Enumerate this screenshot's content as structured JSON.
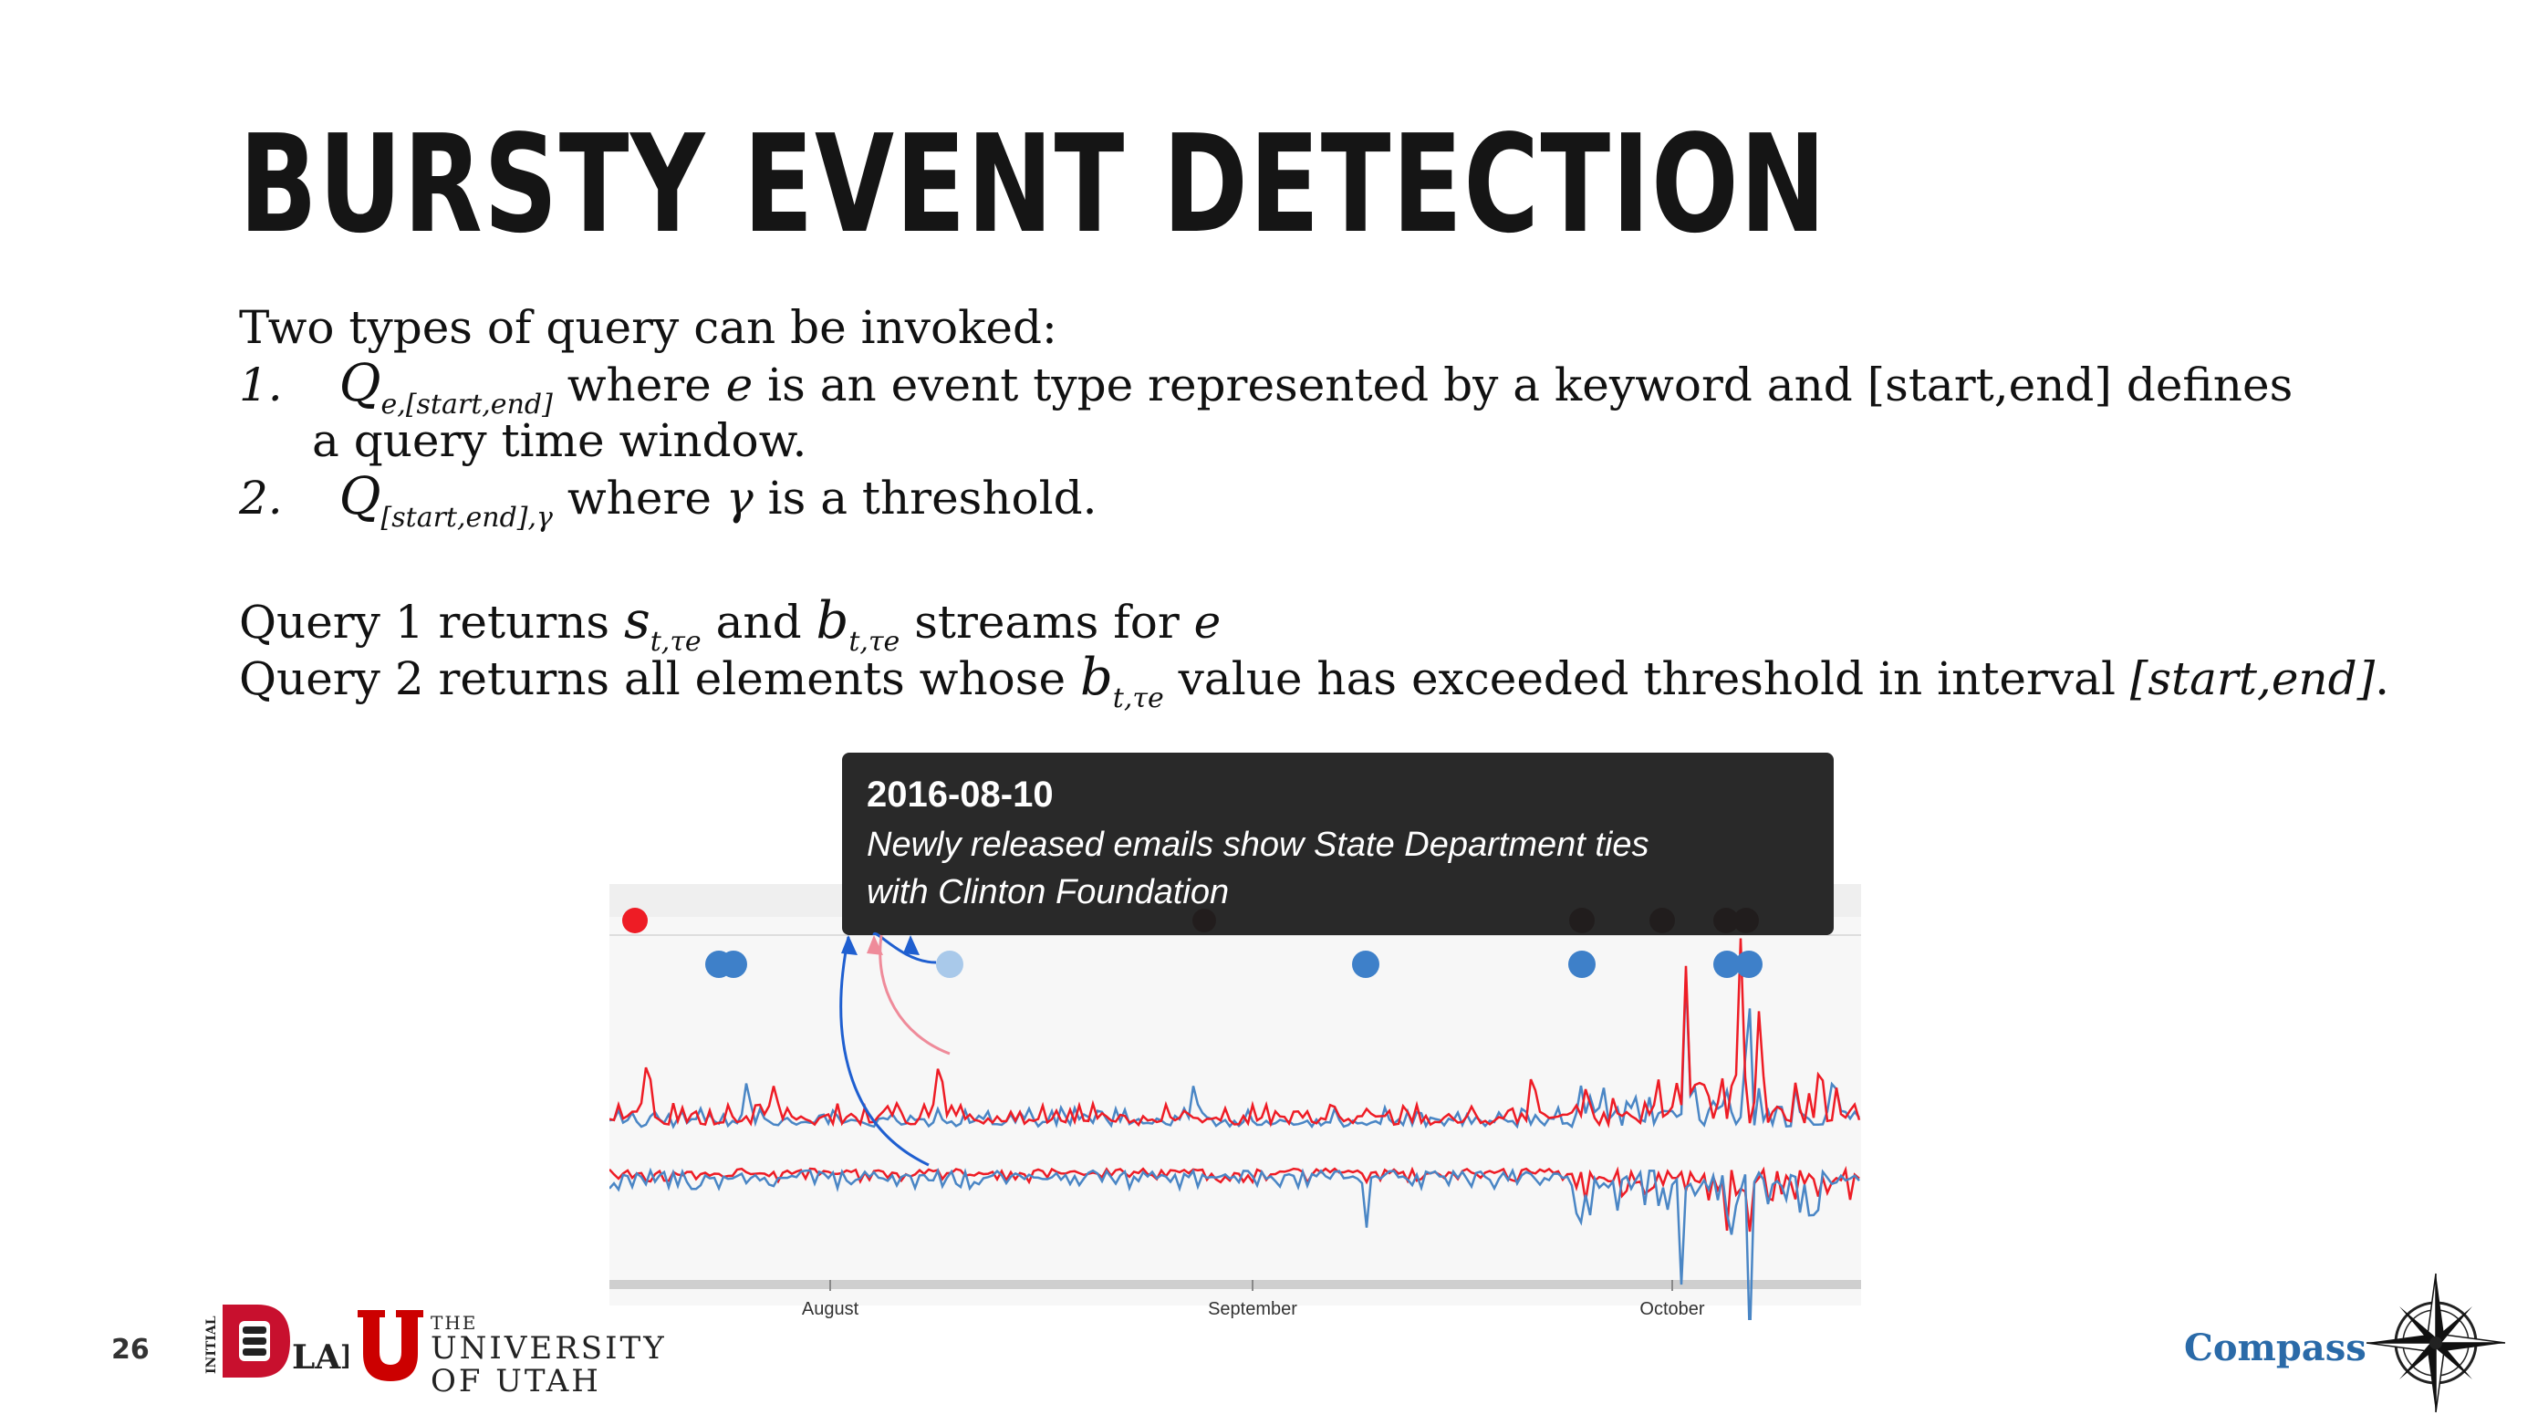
{
  "title": "BURSTY EVENT DETECTION",
  "intro": "Two types of query can be invoked:",
  "item1": {
    "num": "1.",
    "q": "Q",
    "q_sub": "e,[start,end]",
    "t1": " where ",
    "e": "e",
    "t2": " is an event type represented by a keyword and  [start,end] defines",
    "line2": "a query time window."
  },
  "item2": {
    "num": "2.",
    "q": "Q",
    "q_sub": "[start,end],γ",
    "t1": " where ",
    "gamma": "γ",
    "t2": " is a threshold."
  },
  "query1": {
    "t1": "Query 1 returns ",
    "s": "s",
    "s_sub": "t,τe",
    "t2": " and ",
    "b": "b",
    "b_sub": "t,τe",
    "t3": " streams for ",
    "e": "e"
  },
  "query2": {
    "t1": "Query 2 returns all elements whose ",
    "b": "b",
    "b_sub": "t,τe",
    "t2": " value has exceeded threshold  in interval ",
    "interval": "[start,end]",
    "t3": "."
  },
  "chart": {
    "tooltip_date": "2016-08-10",
    "tooltip_line1": "Newly released emails show State Department ties",
    "tooltip_line2": "with Clinton Foundation",
    "x_labels": [
      "August",
      "September",
      "October"
    ],
    "colors": {
      "red": "#ee1c25",
      "blue": "#4a86c5",
      "light_blue": "#a9c9ea",
      "tooltip_bg": "#1e1e1e"
    }
  },
  "footer": {
    "page_number": "26",
    "lab_vertical": "INITIAL",
    "lab": "LAB",
    "uu_the": "THE",
    "uu_line1": "UNIVERSITY",
    "uu_line2": "OF UTAH",
    "compass": "Compass"
  }
}
